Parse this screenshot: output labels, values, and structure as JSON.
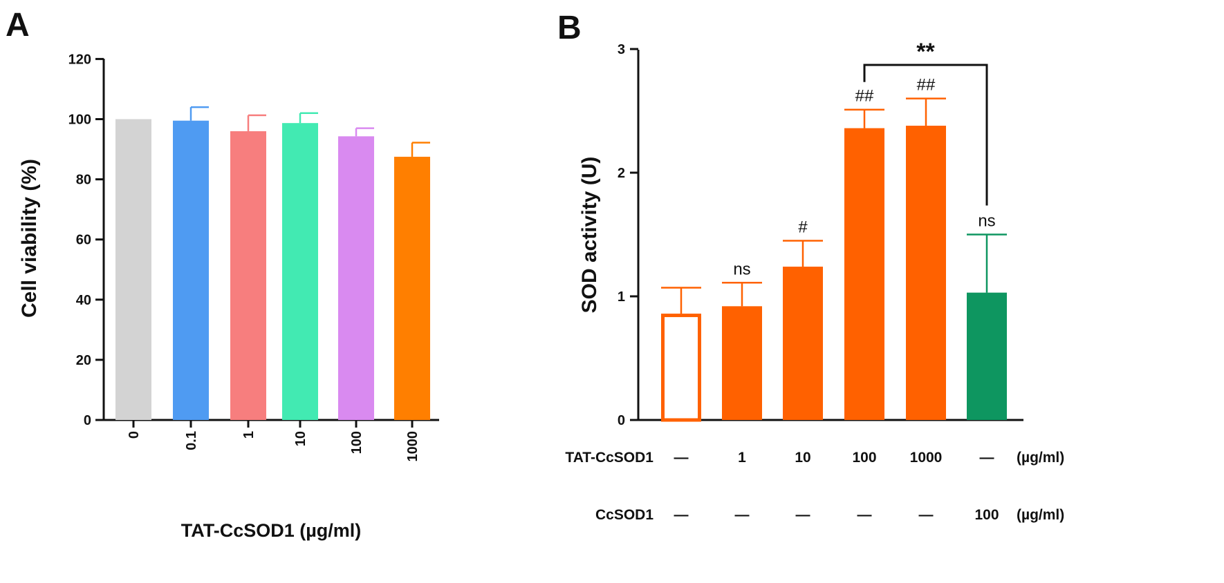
{
  "chart_data": [
    {
      "panel": "A",
      "type": "bar",
      "xlabel": "TAT-CcSOD1 (µg/ml)",
      "ylabel": "Cell viability (%)",
      "ylim": [
        0,
        120
      ],
      "yticks": [
        "0",
        "20",
        "40",
        "60",
        "80",
        "100",
        "120"
      ],
      "categories": [
        "0",
        "0.1",
        "1",
        "10",
        "100",
        "1000"
      ],
      "values": [
        100,
        99.5,
        96,
        98.7,
        94.3,
        87.5
      ],
      "errors": [
        0,
        4.5,
        5.3,
        3.3,
        2.7,
        4.7
      ],
      "colors": [
        "#d3d3d3",
        "#4f9bf2",
        "#f77e7e",
        "#42eab2",
        "#d98af0",
        "#ff7f00"
      ]
    },
    {
      "panel": "B",
      "type": "bar",
      "ylabel": "SOD activity (U)",
      "ylim": [
        0,
        3
      ],
      "yticks": [
        "0",
        "1",
        "2",
        "3"
      ],
      "values": [
        0.86,
        0.92,
        1.24,
        2.36,
        2.38,
        1.03
      ],
      "errors": [
        0.21,
        0.19,
        0.21,
        0.15,
        0.22,
        0.47
      ],
      "fills": [
        "#ffffff",
        "#ff6100",
        "#ff6100",
        "#ff6100",
        "#ff6100",
        "#0e9660"
      ],
      "strokes": [
        "#ff6100",
        "#ff6100",
        "#ff6100",
        "#ff6100",
        "#ff6100",
        "#0e9660"
      ],
      "annotations": [
        "",
        "ns",
        "#",
        "##",
        "##",
        "ns"
      ],
      "bracket": {
        "from": 3,
        "to": 5,
        "label": "**"
      },
      "row_tat": {
        "label": "TAT-CcSOD1",
        "values": [
          "—",
          "1",
          "10",
          "100",
          "1000",
          "—"
        ],
        "unit": "(µg/ml)"
      },
      "row_ccsod": {
        "label": "CcSOD1",
        "values": [
          "—",
          "—",
          "—",
          "—",
          "—",
          "100"
        ],
        "unit": "(µg/ml)"
      }
    }
  ]
}
